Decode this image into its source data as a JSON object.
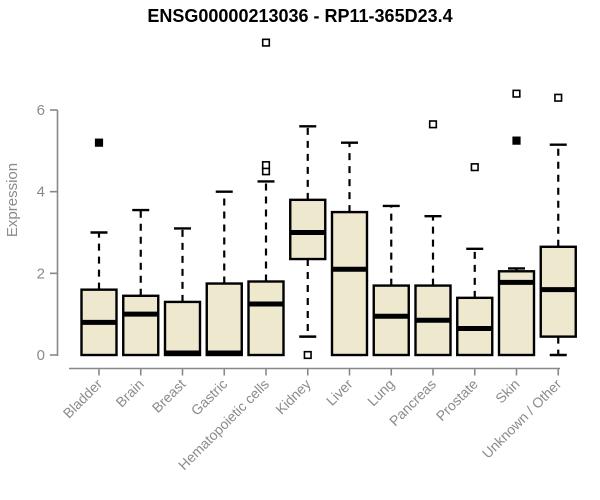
{
  "chart_data": {
    "type": "boxplot",
    "title": "ENSG00000213036 - RP11-365D23.4",
    "ylabel": "Expression",
    "xlabel": "",
    "ylim": [
      0,
      6
    ],
    "yticks": [
      0,
      2,
      4,
      6
    ],
    "grid": false,
    "legend": null,
    "categories": [
      "Bladder",
      "Brain",
      "Breast",
      "Gastric",
      "Hematopoietic cells",
      "Kidney",
      "Liver",
      "Lung",
      "Pancreas",
      "Prostate",
      "Skin",
      "Unknown / Other"
    ],
    "boxes": [
      {
        "category": "Bladder",
        "whisker_low": 0,
        "q1": 0,
        "median": 0.8,
        "q3": 1.6,
        "whisker_high": 3.0,
        "outliers": [
          {
            "value": 5.2,
            "filled": true
          }
        ]
      },
      {
        "category": "Brain",
        "whisker_low": 0,
        "q1": 0,
        "median": 1.0,
        "q3": 1.45,
        "whisker_high": 3.55,
        "outliers": []
      },
      {
        "category": "Breast",
        "whisker_low": 0,
        "q1": 0,
        "median": 0.05,
        "q3": 1.3,
        "whisker_high": 3.1,
        "outliers": []
      },
      {
        "category": "Gastric",
        "whisker_low": 0,
        "q1": 0,
        "median": 0.05,
        "q3": 1.75,
        "whisker_high": 4.0,
        "outliers": []
      },
      {
        "category": "Hematopoietic cells",
        "whisker_low": 0,
        "q1": 0,
        "median": 1.25,
        "q3": 1.8,
        "whisker_high": 4.25,
        "outliers": [
          {
            "value": 4.5,
            "filled": false
          },
          {
            "value": 4.65,
            "filled": false
          },
          {
            "value": 7.65,
            "filled": false
          }
        ]
      },
      {
        "category": "Kidney",
        "whisker_low": 0.45,
        "q1": 2.35,
        "median": 3.0,
        "q3": 3.8,
        "whisker_high": 5.6,
        "outliers": [
          {
            "value": 0,
            "filled": false
          }
        ]
      },
      {
        "category": "Liver",
        "whisker_low": 0,
        "q1": 0,
        "median": 2.1,
        "q3": 3.5,
        "whisker_high": 5.2,
        "outliers": []
      },
      {
        "category": "Lung",
        "whisker_low": 0,
        "q1": 0,
        "median": 0.95,
        "q3": 1.7,
        "whisker_high": 3.65,
        "outliers": []
      },
      {
        "category": "Pancreas",
        "whisker_low": 0,
        "q1": 0,
        "median": 0.85,
        "q3": 1.7,
        "whisker_high": 3.4,
        "outliers": [
          {
            "value": 5.65,
            "filled": false
          }
        ]
      },
      {
        "category": "Prostate",
        "whisker_low": 0,
        "q1": 0,
        "median": 0.65,
        "q3": 1.4,
        "whisker_high": 2.6,
        "outliers": [
          {
            "value": 4.6,
            "filled": false
          }
        ]
      },
      {
        "category": "Skin",
        "whisker_low": 0,
        "q1": 0,
        "median": 1.78,
        "q3": 2.05,
        "whisker_high": 2.12,
        "outliers": [
          {
            "value": 5.25,
            "filled": true
          },
          {
            "value": 6.4,
            "filled": false
          }
        ]
      },
      {
        "category": "Unknown / Other",
        "whisker_low": 0,
        "q1": 0.45,
        "median": 1.6,
        "q3": 2.65,
        "whisker_high": 5.15,
        "outliers": [
          {
            "value": 6.3,
            "filled": false
          }
        ]
      }
    ],
    "colors": {
      "box_fill": "#EDE8CE",
      "box_stroke": "#000000",
      "median": "#000000",
      "whisker": "#000000",
      "axis": "#888888",
      "tick_label": "#8B8B8B",
      "title": "#000000"
    }
  }
}
